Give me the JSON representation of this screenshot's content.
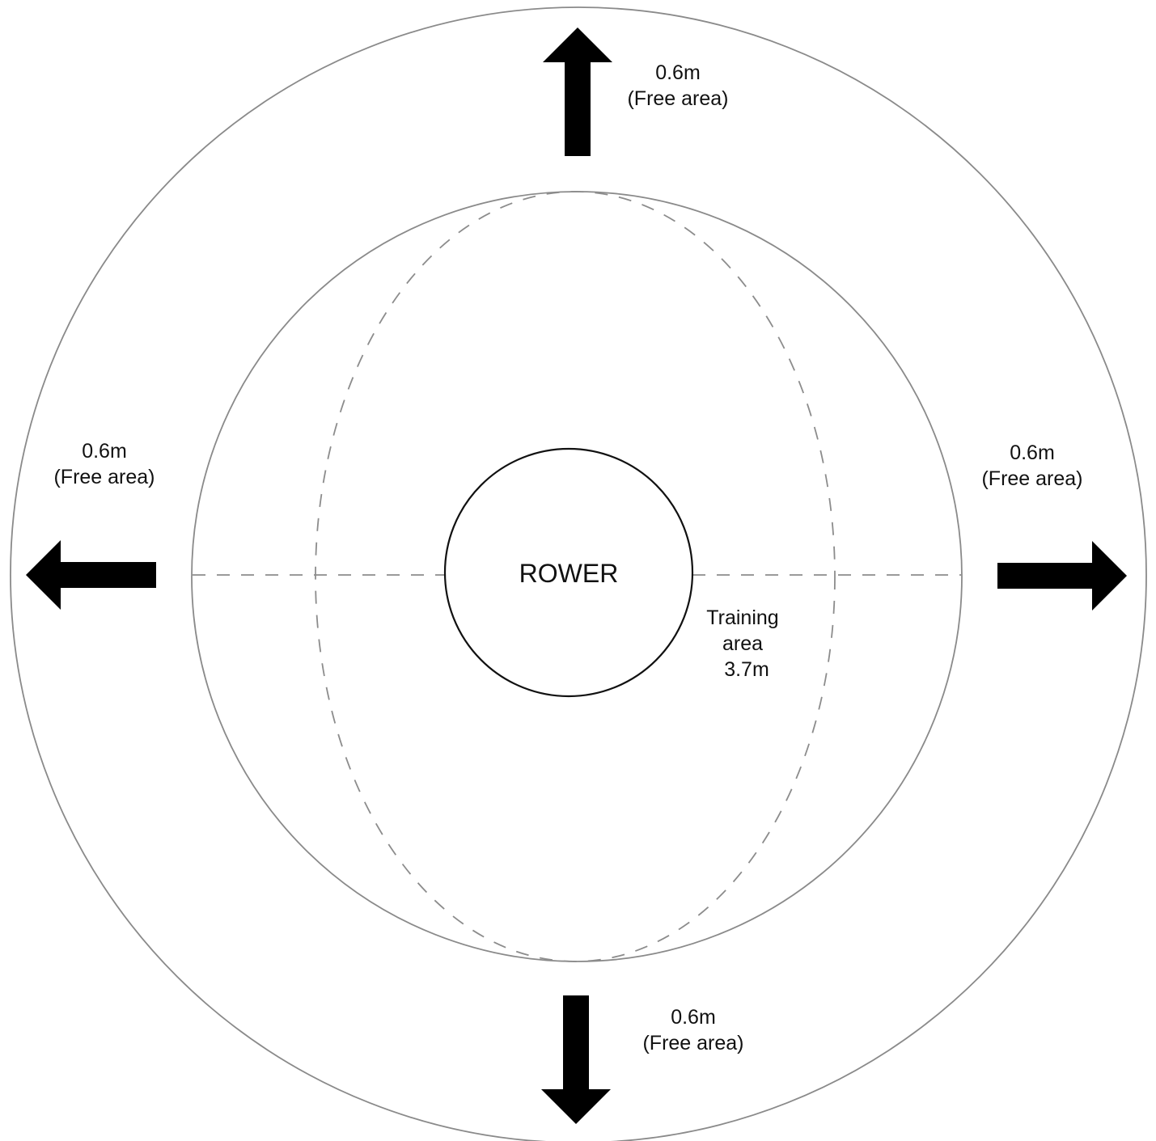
{
  "rower": {
    "label": "ROWER"
  },
  "training_area": {
    "line1": "Training",
    "line2": "area",
    "line3": "3.7m"
  },
  "free_area": {
    "top": {
      "distance": "0.6m",
      "note": "(Free area)"
    },
    "left": {
      "distance": "0.6m",
      "note": "(Free area)"
    },
    "right": {
      "distance": "0.6m",
      "note": "(Free area)"
    },
    "bottom": {
      "distance": "0.6m",
      "note": "(Free area)"
    }
  },
  "colors": {
    "outline": "#8a8a8a",
    "dashed": "#8c8c8c",
    "rower_outline": "#111111",
    "arrow_fill": "#000000"
  }
}
